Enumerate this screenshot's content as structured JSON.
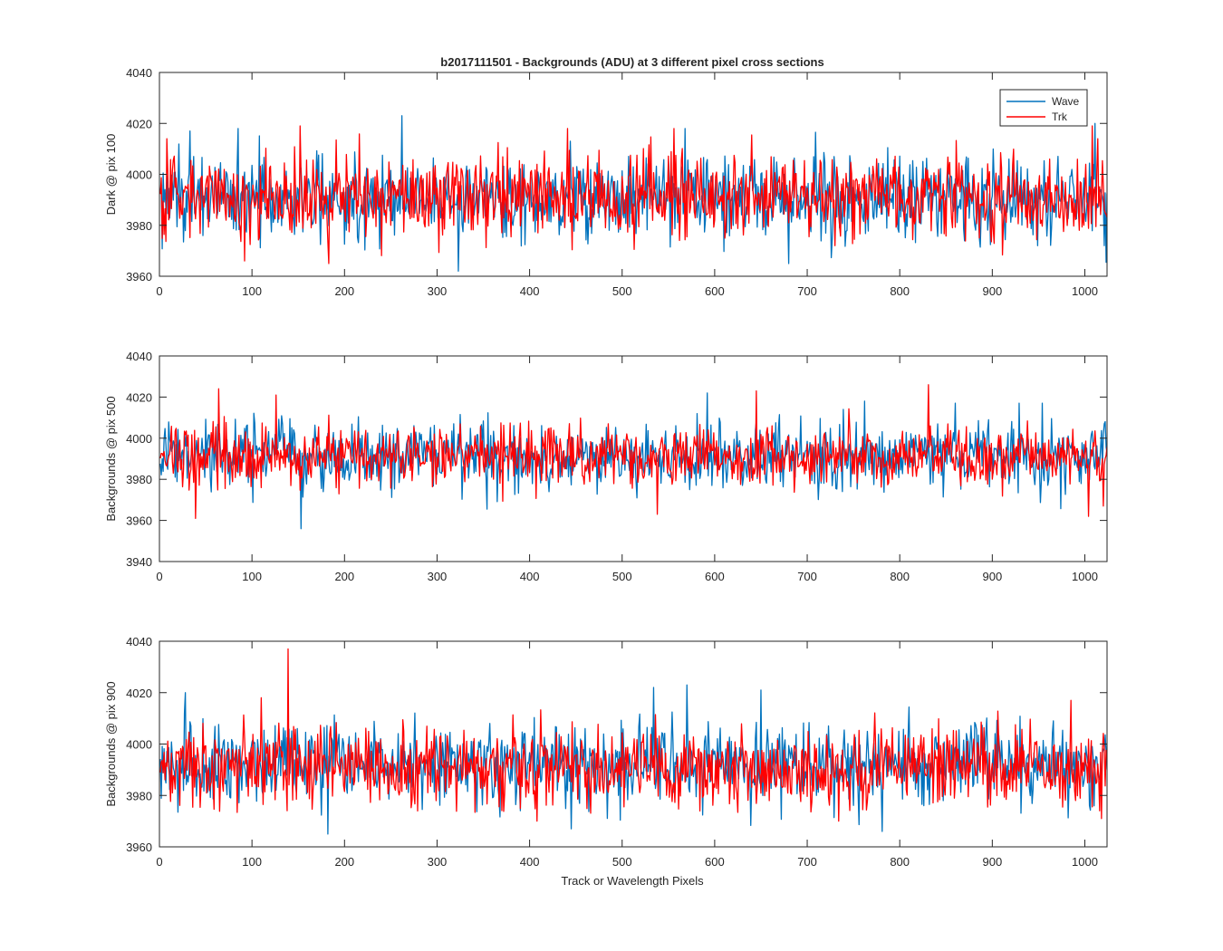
{
  "figure": {
    "title": "b2017111501 - Backgrounds (ADU) at 3 different pixel cross sections",
    "xlabel": "Track or Wavelength Pixels"
  },
  "chart_data": [
    {
      "type": "line",
      "ylabel": "Dark @ pix 100",
      "xlim": [
        0,
        1024
      ],
      "ylim": [
        3960,
        4040
      ],
      "xticks": [
        0,
        100,
        200,
        300,
        400,
        500,
        600,
        700,
        800,
        900,
        1000
      ],
      "yticks": [
        3960,
        3980,
        4000,
        4020,
        4040
      ],
      "legend": {
        "placement": "top-right",
        "entries": [
          "Wave",
          "Trk"
        ]
      },
      "grid": false,
      "series": [
        {
          "name": "Wave",
          "color": "#0072bd",
          "x_range": [
            1,
            1024
          ],
          "mean": 3991,
          "std": 8,
          "min_approx": 3962,
          "max_approx": 4023,
          "peaks": [
            [
              33,
              4017
            ],
            [
              85,
              4018
            ],
            [
              262,
              4023
            ],
            [
              323,
              3962
            ],
            [
              444,
              4013
            ],
            [
              568,
              4018
            ],
            [
              680,
              3965
            ],
            [
              1011,
              4020
            ],
            [
              1021,
              3972
            ]
          ]
        },
        {
          "name": "Trk",
          "color": "#ff0000",
          "x_range": [
            1,
            1024
          ],
          "mean": 3991,
          "std": 8,
          "min_approx": 3965,
          "max_approx": 4019,
          "peaks": [
            [
              8,
              4014
            ],
            [
              92,
              3966
            ],
            [
              152,
              4019
            ],
            [
              183,
              3965
            ],
            [
              441,
              4018
            ],
            [
              556,
              4018
            ],
            [
              1008,
              4019
            ],
            [
              1014,
              4014
            ]
          ]
        }
      ]
    },
    {
      "type": "line",
      "ylabel": "Backgrounds @ pix 500",
      "xlim": [
        0,
        1024
      ],
      "ylim": [
        3940,
        4040
      ],
      "xticks": [
        0,
        100,
        200,
        300,
        400,
        500,
        600,
        700,
        800,
        900,
        1000
      ],
      "yticks": [
        3940,
        3960,
        3980,
        4000,
        4020,
        4040
      ],
      "grid": false,
      "series": [
        {
          "name": "Wave",
          "color": "#0072bd",
          "x_range": [
            1,
            1024
          ],
          "mean": 3991,
          "std": 8,
          "min_approx": 3956,
          "max_approx": 4022,
          "peaks": [
            [
              153,
              3956
            ],
            [
              592,
              4022
            ],
            [
              762,
              4018
            ],
            [
              860,
              4017
            ],
            [
              929,
              4017
            ],
            [
              1021,
              4007
            ]
          ]
        },
        {
          "name": "Trk",
          "color": "#ff0000",
          "x_range": [
            1,
            1024
          ],
          "mean": 3991,
          "std": 7,
          "min_approx": 3961,
          "max_approx": 4026,
          "peaks": [
            [
              39,
              3961
            ],
            [
              64,
              4024
            ],
            [
              126,
              4021
            ],
            [
              538,
              3963
            ],
            [
              645,
              4023
            ],
            [
              1004,
              3962
            ],
            [
              831,
              4026
            ],
            [
              1020,
              3967
            ]
          ]
        }
      ]
    },
    {
      "type": "line",
      "ylabel": "Backgrounds @ pix 900",
      "xlim": [
        0,
        1024
      ],
      "ylim": [
        3960,
        4040
      ],
      "xticks": [
        0,
        100,
        200,
        300,
        400,
        500,
        600,
        700,
        800,
        900,
        1000
      ],
      "yticks": [
        3960,
        3980,
        4000,
        4020,
        4040
      ],
      "grid": false,
      "series": [
        {
          "name": "Wave",
          "color": "#0072bd",
          "x_range": [
            1,
            1024
          ],
          "mean": 3992,
          "std": 8,
          "min_approx": 3965,
          "max_approx": 4023,
          "peaks": [
            [
              28,
              4020
            ],
            [
              182,
              3965
            ],
            [
              445,
              3967
            ],
            [
              534,
              4022
            ],
            [
              570,
              4023
            ],
            [
              650,
              4021
            ],
            [
              781,
              3966
            ]
          ]
        },
        {
          "name": "Trk",
          "color": "#ff0000",
          "x_range": [
            1,
            1024
          ],
          "mean": 3991,
          "std": 8,
          "min_approx": 3970,
          "max_approx": 4037,
          "peaks": [
            [
              110,
              4018
            ],
            [
              139,
              4037
            ],
            [
              408,
              3970
            ],
            [
              734,
              3970
            ],
            [
              985,
              4017
            ],
            [
              1018,
              3971
            ]
          ]
        }
      ]
    }
  ]
}
